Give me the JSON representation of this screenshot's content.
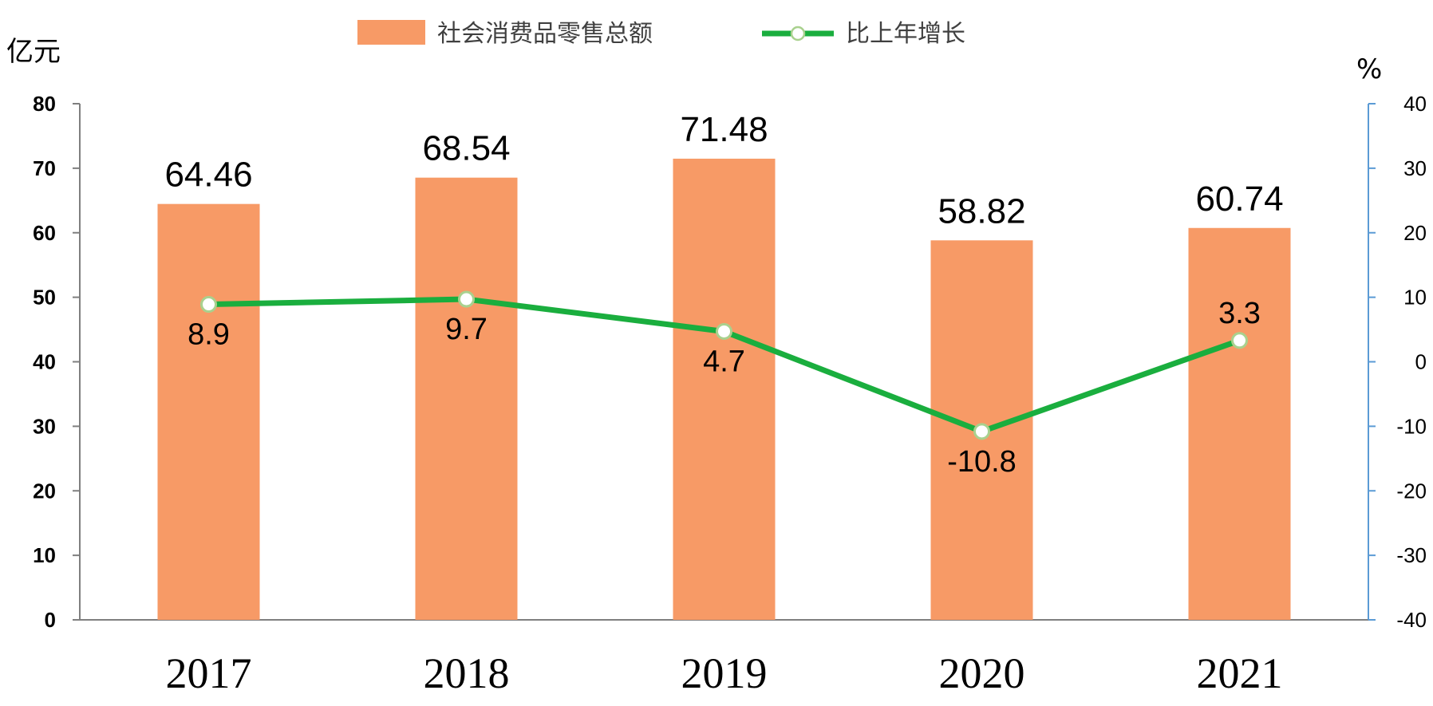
{
  "chart_data": {
    "type": "bar",
    "categories": [
      "2017",
      "2018",
      "2019",
      "2020",
      "2021"
    ],
    "series": [
      {
        "name": "社会消费品零售总额",
        "type": "bar",
        "axis": "left",
        "values": [
          64.46,
          68.54,
          71.48,
          58.82,
          60.74
        ],
        "labels": [
          "64.46",
          "68.54",
          "71.48",
          "58.82",
          "60.74"
        ],
        "color": "#F79A66"
      },
      {
        "name": "比上年增长",
        "type": "line",
        "axis": "right",
        "values": [
          8.9,
          9.7,
          4.7,
          -10.8,
          3.3
        ],
        "labels": [
          "8.9",
          "9.7",
          "4.7",
          "-10.8",
          "3.3"
        ],
        "color": "#1AAE3E"
      }
    ],
    "y_left": {
      "unit": "亿元",
      "range": [
        0,
        80
      ],
      "ticks": [
        "0",
        "10",
        "20",
        "30",
        "40",
        "50",
        "60",
        "70",
        "80"
      ]
    },
    "y_right": {
      "unit": "%",
      "range": [
        -40,
        40
      ],
      "ticks": [
        "-40",
        "-30",
        "-20",
        "-10",
        "0",
        "10",
        "20",
        "30",
        "40"
      ]
    },
    "legend_position": "top-center",
    "grid": false,
    "colors": {
      "axis_left": "#7F7F7F",
      "axis_right": "#5B9BD5",
      "marker_fill": "#FFFFFF",
      "marker_stroke": "#A9D18E"
    }
  }
}
